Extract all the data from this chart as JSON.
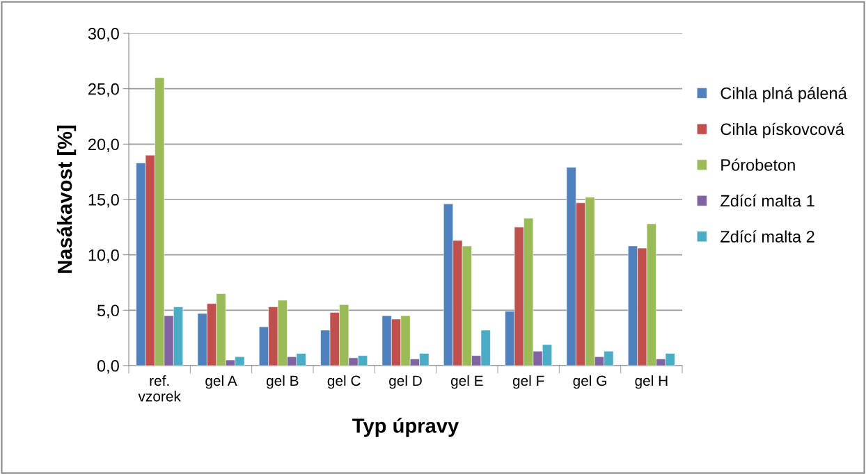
{
  "chart_data": {
    "type": "bar",
    "xlabel": "Typ úpravy",
    "ylabel": "Nasákavost [%]",
    "categories": [
      "ref.\nvzorek",
      "gel A",
      "gel B",
      "gel C",
      "gel D",
      "gel E",
      "gel F",
      "gel G",
      "gel H"
    ],
    "series": [
      {
        "name": "Cihla plná pálená",
        "color": "#4f81bd",
        "values": [
          18.3,
          4.7,
          3.5,
          3.2,
          4.5,
          14.6,
          4.9,
          17.9,
          10.8
        ]
      },
      {
        "name": "Cihla pískovcová",
        "color": "#c0504d",
        "values": [
          19.0,
          5.6,
          5.3,
          4.8,
          4.2,
          11.3,
          12.5,
          14.7,
          10.6
        ]
      },
      {
        "name": "Pórobeton",
        "color": "#9bbb59",
        "values": [
          26.0,
          6.5,
          5.9,
          5.5,
          4.5,
          10.8,
          13.3,
          15.2,
          12.8
        ]
      },
      {
        "name": "Zdící malta 1",
        "color": "#8064a2",
        "values": [
          4.5,
          0.5,
          0.8,
          0.7,
          0.6,
          0.9,
          1.3,
          0.8,
          0.6
        ]
      },
      {
        "name": "Zdící malta 2",
        "color": "#4bacc6",
        "values": [
          5.3,
          0.8,
          1.1,
          0.9,
          1.1,
          3.2,
          1.9,
          1.3,
          1.1
        ]
      }
    ],
    "ylim": [
      0,
      30
    ],
    "yticks": [
      {
        "value": 0,
        "label": "0,0"
      },
      {
        "value": 5,
        "label": "5,0"
      },
      {
        "value": 10,
        "label": "10,0"
      },
      {
        "value": 15,
        "label": "15,0"
      },
      {
        "value": 20,
        "label": "20,0"
      },
      {
        "value": 25,
        "label": "25,0"
      },
      {
        "value": 30,
        "label": "30,0"
      }
    ],
    "grid": "y",
    "legend": "right"
  }
}
